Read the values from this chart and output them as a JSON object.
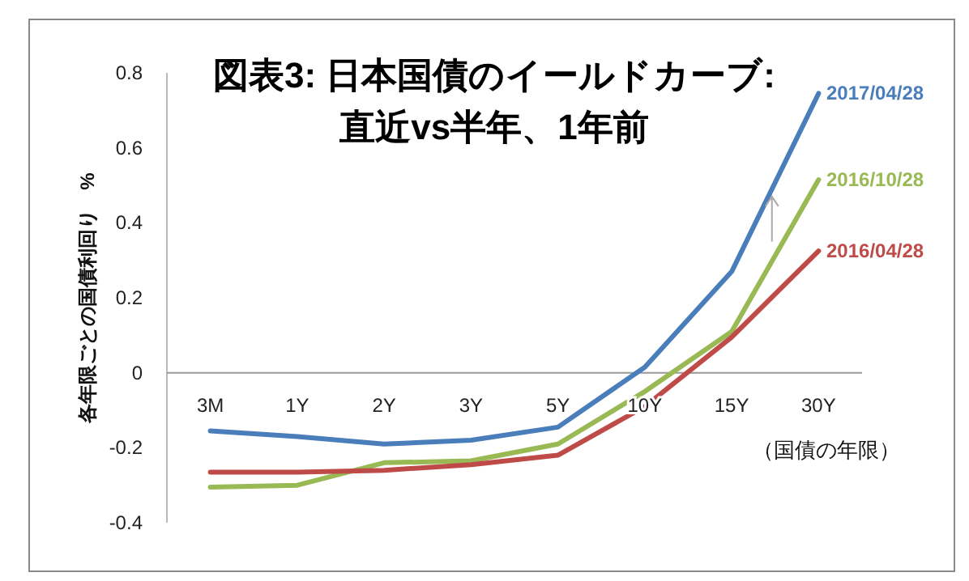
{
  "chart_data": {
    "type": "line",
    "title": "図表3: 日本国債のイールドカーブ:\n直近vs半年、1年前",
    "ylabel": "各年限ごとの国債利回り　%",
    "xlabel": "（国債の年限）",
    "categories": [
      "3M",
      "1Y",
      "2Y",
      "3Y",
      "5Y",
      "10Y",
      "15Y",
      "30Y"
    ],
    "series": [
      {
        "name": "2017/04/28",
        "color": "#4a7ebb",
        "values": [
          -0.155,
          -0.17,
          -0.19,
          -0.18,
          -0.145,
          0.015,
          0.27,
          0.745
        ]
      },
      {
        "name": "2016/10/28",
        "color": "#98b954",
        "values": [
          -0.305,
          -0.3,
          -0.24,
          -0.235,
          -0.19,
          -0.05,
          0.11,
          0.515
        ]
      },
      {
        "name": "2016/04/28",
        "color": "#be4b48",
        "values": [
          -0.265,
          -0.265,
          -0.26,
          -0.245,
          -0.22,
          -0.09,
          0.095,
          0.325
        ]
      }
    ],
    "ylim": [
      -0.4,
      0.8
    ],
    "yticks": [
      -0.4,
      -0.2,
      0,
      0.2,
      0.4,
      0.6,
      0.8
    ],
    "grid": false,
    "line_style": "solid",
    "marker": "none"
  }
}
